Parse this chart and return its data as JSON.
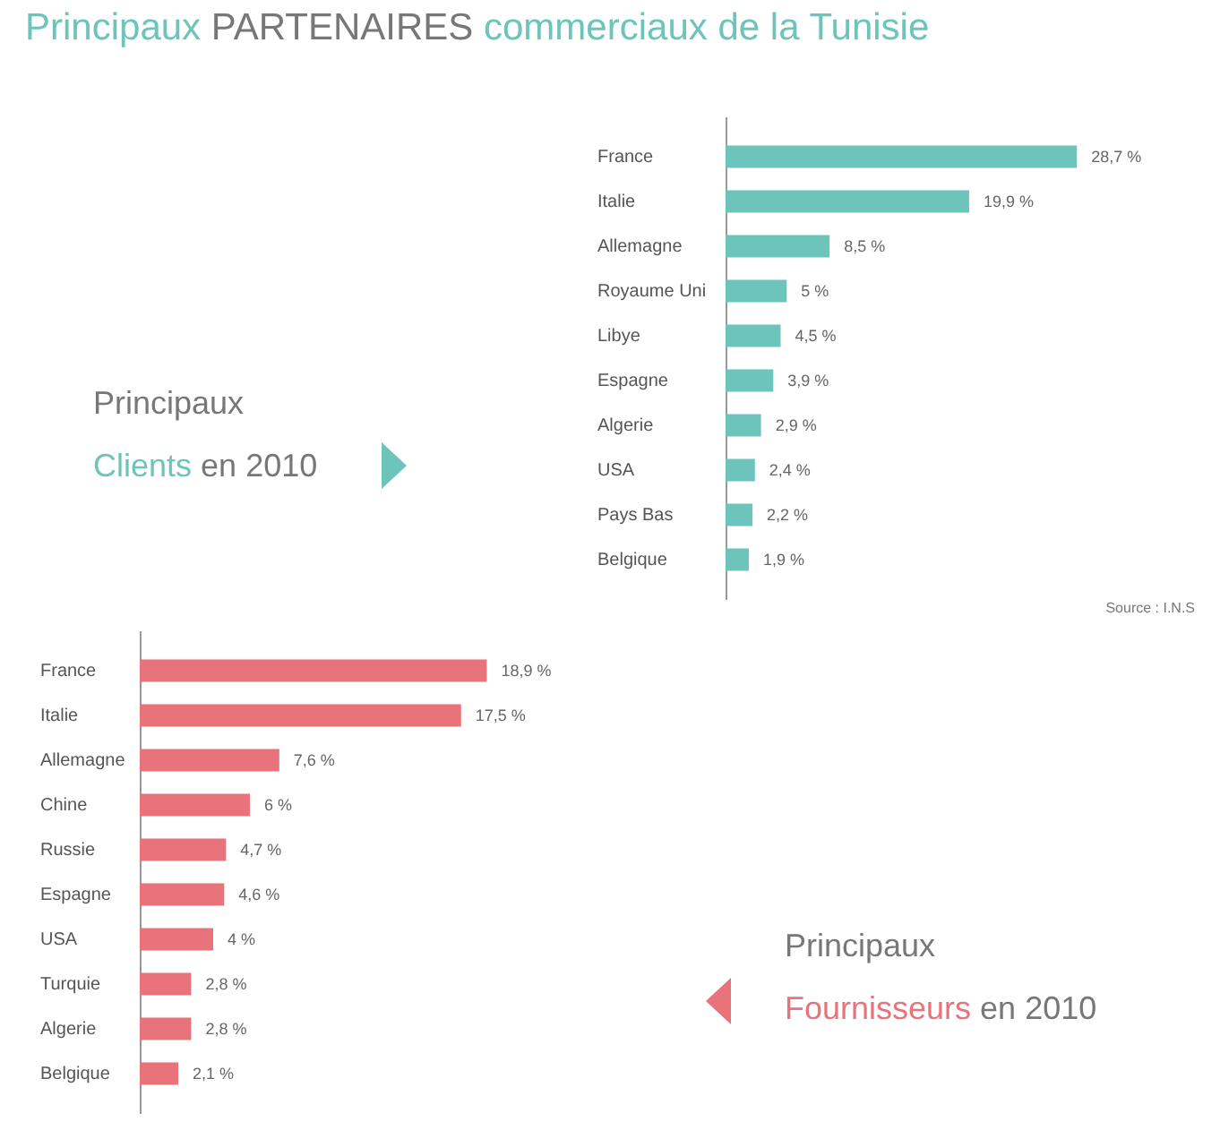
{
  "chart_data": [
    {
      "type": "bar",
      "orientation": "horizontal",
      "title": "Principaux PARTENAIRES commerciaux de la Tunisie",
      "annotations": [
        "Principaux",
        "Clients en 2010",
        "Source : I.N.S"
      ],
      "categories": [
        "France",
        "Italie",
        "Allemagne",
        "Royaume Uni",
        "Libye",
        "Espagne",
        "Algerie",
        "USA",
        "Pays Bas",
        "Belgique"
      ],
      "values": [
        28.7,
        19.9,
        8.5,
        5,
        4.5,
        3.9,
        2.9,
        2.4,
        2.2,
        1.9
      ],
      "color": "#6cc4bb",
      "value_labels": [
        "28,7 %",
        "19,9 %",
        "8,5 %",
        "5 %",
        "4,5 %",
        "3,9 %",
        "2,9 %",
        "2,4 %",
        "2,2 %",
        "1,9 %"
      ]
    },
    {
      "type": "bar",
      "orientation": "horizontal",
      "annotations": [
        "Principaux",
        "Fournisseurs en 2010"
      ],
      "categories": [
        "France",
        "Italie",
        "Allemagne",
        "Chine",
        "Russie",
        "Espagne",
        "USA",
        "Turquie",
        "Algerie",
        "Belgique"
      ],
      "values": [
        18.9,
        17.5,
        7.6,
        6,
        4.7,
        4.6,
        4,
        2.8,
        2.8,
        2.1
      ],
      "color": "#e8737a",
      "value_labels": [
        "18,9 %",
        "17,5 %",
        "7,6 %",
        "6 %",
        "4,7 %",
        "4,6 %",
        "4 %",
        "2,8 %",
        "2,8 %",
        "2,1 %"
      ]
    }
  ]
}
